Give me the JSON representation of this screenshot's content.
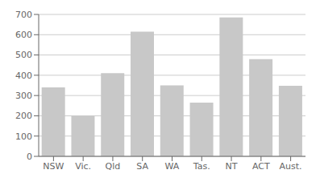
{
  "chart_data": {
    "type": "bar",
    "categories": [
      "NSW",
      "Vic.",
      "Qld",
      "SA",
      "WA",
      "Tas.",
      "NT",
      "ACT",
      "Aust."
    ],
    "values": [
      340,
      200,
      410,
      615,
      350,
      265,
      685,
      480,
      348
    ],
    "color": "#c8c8c8",
    "ylim": [
      0,
      700
    ],
    "yticks": [
      0,
      100,
      200,
      300,
      400,
      500,
      600,
      700
    ],
    "grid": true
  }
}
